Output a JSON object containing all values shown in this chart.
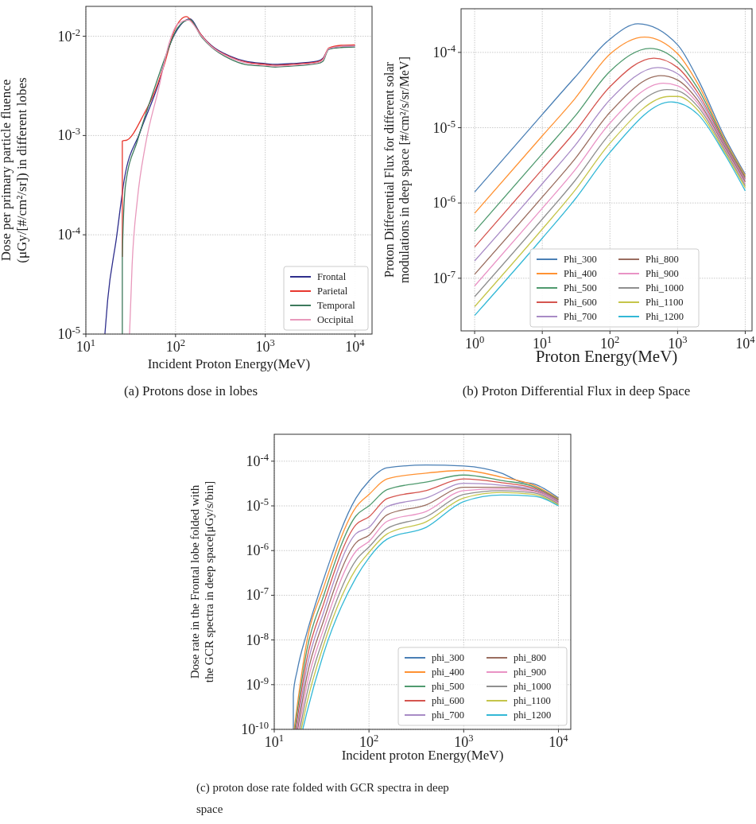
{
  "chart_data": [
    {
      "type": "line",
      "title": "(a)  Protons dose in lobes",
      "xlabel": "Incident Proton Energy(MeV)",
      "ylabel": "Dose per primary particle fluence\n(μGy/[#/cm²/sr]) in different lobes",
      "log": "xy",
      "grid": true,
      "legend": "bottom right",
      "line_style": "solid",
      "xlim": [
        10,
        15500
      ],
      "ylim": [
        1e-05,
        0.02
      ],
      "xticks": [
        {
          "value": 10,
          "label": "10$^{1}$"
        },
        {
          "value": 100,
          "label": "10$^{2}$"
        },
        {
          "value": 1000,
          "label": "10$^{3}$"
        },
        {
          "value": 10000,
          "label": "10$^{4}$"
        }
      ],
      "yticks": [
        {
          "value": 1e-05,
          "label": "10$^{-5}$"
        },
        {
          "value": 0.0001,
          "label": "10$^{-4}$"
        },
        {
          "value": 0.001,
          "label": "10$^{-3}$"
        },
        {
          "value": 0.01,
          "label": "10$^{-2}$"
        }
      ],
      "series": [
        {
          "name": "Frontal",
          "color": "#2e2e8c",
          "x": [
            16.3,
            17.5,
            21.9,
            26.8,
            40,
            65,
            85,
            113,
            145,
            192,
            250,
            405,
            600,
            1000,
            1290,
            1950,
            3800,
            4400,
            5100,
            7000,
            10000
          ],
          "values": [
            1e-05,
            2.2e-05,
            9.2e-05,
            0.00036,
            0.00107,
            0.0034,
            0.0079,
            0.0129,
            0.015,
            0.0104,
            0.0081,
            0.0063,
            0.0056,
            0.0053,
            0.0052,
            0.0053,
            0.0056,
            0.006,
            0.0074,
            0.0079,
            0.008
          ]
        },
        {
          "name": "Parietal",
          "color": "#e8382f",
          "x": [
            25.5,
            25.5,
            28.7,
            44.5,
            56,
            74,
            98,
            132,
            167,
            192,
            250,
            405,
            600,
            1000,
            1290,
            1950,
            3800,
            4400,
            5100,
            7000,
            10000
          ],
          "values": [
            6e-05,
            0.00088,
            0.0009,
            0.00165,
            0.0025,
            0.005,
            0.0117,
            0.0158,
            0.0125,
            0.0104,
            0.008,
            0.0062,
            0.0055,
            0.0052,
            0.0051,
            0.0052,
            0.0055,
            0.0059,
            0.0076,
            0.0081,
            0.0082
          ]
        },
        {
          "name": "Temporal",
          "color": "#3d7a5c",
          "x": [
            25.5,
            25.5,
            27.7,
            37.6,
            56,
            80,
            105,
            145,
            192,
            250,
            405,
            600,
            1000,
            1290,
            1950,
            3800,
            4400,
            5100,
            7000,
            10000
          ],
          "values": [
            1e-05,
            6e-05,
            0.00032,
            0.00089,
            0.0027,
            0.0068,
            0.0121,
            0.0147,
            0.01,
            0.0078,
            0.0059,
            0.0052,
            0.005,
            0.0049,
            0.005,
            0.0053,
            0.0056,
            0.0074,
            0.0077,
            0.0078
          ]
        },
        {
          "name": "Occipital",
          "color": "#e899bc",
          "x": [
            30.7,
            32.8,
            37.6,
            46,
            65,
            85,
            105,
            138,
            192,
            250,
            405,
            600,
            1000,
            1290,
            1950,
            3800,
            4400,
            5100,
            7000,
            10000
          ],
          "values": [
            1e-05,
            5e-05,
            0.00023,
            0.00079,
            0.003,
            0.0086,
            0.0132,
            0.0146,
            0.0102,
            0.0079,
            0.0061,
            0.0054,
            0.0051,
            0.005,
            0.0051,
            0.0054,
            0.0058,
            0.0075,
            0.0079,
            0.008
          ]
        }
      ]
    },
    {
      "type": "line",
      "title": "(b)  Proton Differential Flux in deep Space",
      "xlabel": "Proton Energy(MeV)",
      "ylabel": "Proton Differential Flux for different solar\nmodulations in deep space [#/cm²/s/sr/MeV]",
      "log": "xy",
      "grid": true,
      "legend": "bottom",
      "line_style": "solid",
      "xlim": [
        0.63,
        12600
      ],
      "ylim": [
        2e-08,
        0.00038
      ],
      "xticks": [
        {
          "value": 1,
          "label": "10$^{0}$"
        },
        {
          "value": 10,
          "label": "10$^{1}$"
        },
        {
          "value": 100,
          "label": "10$^{2}$"
        },
        {
          "value": 1000,
          "label": "10$^{3}$"
        },
        {
          "value": 10000,
          "label": "10$^{4}$"
        }
      ],
      "yticks": [
        {
          "value": 1e-07,
          "label": "10$^{-7}$"
        },
        {
          "value": 1e-06,
          "label": "10$^{-6}$"
        },
        {
          "value": 1e-05,
          "label": "10$^{-5}$"
        },
        {
          "value": 0.0001,
          "label": "10$^{-4}$"
        }
      ],
      "series": [
        {
          "name": "Phi_300",
          "color": "#4a7fb5",
          "x": [
            1,
            10,
            30,
            100,
            260,
            1000,
            2000,
            5000,
            10000
          ],
          "values": [
            1.4e-06,
            1.5e-05,
            4.6e-05,
            0.00015,
            0.00024,
            0.000126,
            4.4e-05,
            7.4e-06,
            2.4e-06
          ]
        },
        {
          "name": "Phi_400",
          "color": "#ff9233",
          "x": [
            1,
            10,
            30,
            100,
            325,
            1000,
            2000,
            5000,
            10000
          ],
          "values": [
            7.3e-07,
            7.8e-06,
            2.4e-05,
            9.5e-05,
            0.00016,
            9.6e-05,
            3.8e-05,
            6.9e-06,
            2.3e-06
          ]
        },
        {
          "name": "Phi_500",
          "color": "#4f9a6e",
          "x": [
            1,
            10,
            30,
            100,
            390,
            1000,
            2000,
            5000,
            10000
          ],
          "values": [
            4.2e-07,
            4.5e-06,
            1.4e-05,
            5.6e-05,
            0.000113,
            7.6e-05,
            3.3e-05,
            6.5e-06,
            2.2e-06
          ]
        },
        {
          "name": "Phi_600",
          "color": "#d5554f",
          "x": [
            1,
            10,
            30,
            100,
            445,
            1000,
            2000,
            5000,
            10000
          ],
          "values": [
            2.6e-07,
            2.8e-06,
            8.7e-06,
            3.5e-05,
            8.4e-05,
            6.3e-05,
            2.9e-05,
            6.1e-06,
            2.1e-06
          ]
        },
        {
          "name": "Phi_700",
          "color": "#a88bc6",
          "x": [
            1,
            10,
            30,
            100,
            510,
            1000,
            2000,
            5000,
            10000
          ],
          "values": [
            1.7e-07,
            1.8e-06,
            5.7e-06,
            2.35e-05,
            6.3e-05,
            5.2e-05,
            2.6e-05,
            5.8e-06,
            2e-06
          ]
        },
        {
          "name": "Phi_800",
          "color": "#9a6d5f",
          "x": [
            1,
            10,
            30,
            100,
            560,
            1000,
            2000,
            5000,
            10000
          ],
          "values": [
            1.13e-07,
            1.2e-06,
            3.8e-06,
            1.6e-05,
            4.9e-05,
            4.3e-05,
            2.3e-05,
            5.5e-06,
            1.9e-06
          ]
        },
        {
          "name": "Phi_900",
          "color": "#e993c5",
          "x": [
            1,
            10,
            30,
            100,
            615,
            1000,
            2000,
            5000,
            10000
          ],
          "values": [
            7.9e-08,
            8.5e-07,
            2.7e-06,
            1.15e-05,
            3.9e-05,
            3.6e-05,
            2.1e-05,
            5.2e-06,
            1.8e-06
          ]
        },
        {
          "name": "Phi_1000",
          "color": "#8f8f8f",
          "x": [
            1,
            10,
            30,
            100,
            695,
            1000,
            2000,
            5000,
            10000
          ],
          "values": [
            5.7e-08,
            6.1e-07,
            1.95e-06,
            8.3e-06,
            3.2e-05,
            3.1e-05,
            1.9e-05,
            5e-06,
            1.7e-06
          ]
        },
        {
          "name": "Phi_1100",
          "color": "#c5c54a",
          "x": [
            1,
            10,
            30,
            100,
            760,
            1000,
            2000,
            5000,
            10000
          ],
          "values": [
            4.2e-08,
            4.5e-07,
            1.45e-06,
            6.2e-06,
            2.6e-05,
            2.6e-05,
            1.7e-05,
            4.7e-06,
            1.6e-06
          ]
        },
        {
          "name": "Phi_1200",
          "color": "#33b8d6",
          "x": [
            1,
            10,
            30,
            100,
            800,
            2000,
            5000,
            10000
          ],
          "values": [
            3.2e-08,
            3.4e-07,
            1.1e-06,
            4.7e-06,
            2.2e-05,
            1.5e-05,
            4.4e-06,
            1.45e-06
          ]
        }
      ]
    },
    {
      "type": "line",
      "title": "(c)  proton dose rate folded with GCR spectra in deep space",
      "xlabel": "Incident proton Energy(MeV)",
      "ylabel": "Dose rate in the Frontal lobe folded with\nthe GCR spectra in deep space[μGy/s/bin]",
      "log": "xy",
      "grid": true,
      "legend": "bottom right",
      "line_style": "solid",
      "xlim": [
        10,
        13500
      ],
      "ylim": [
        1e-10,
        0.0004
      ],
      "xticks": [
        {
          "value": 10,
          "label": "10$^{1}$"
        },
        {
          "value": 100,
          "label": "10$^{2}$"
        },
        {
          "value": 1000,
          "label": "10$^{3}$"
        },
        {
          "value": 10000,
          "label": "10$^{4}$"
        }
      ],
      "yticks": [
        {
          "value": 1e-10,
          "label": "10$^{-10}$"
        },
        {
          "value": 1e-09,
          "label": "10$^{-9}$"
        },
        {
          "value": 1e-08,
          "label": "10$^{-8}$"
        },
        {
          "value": 1e-07,
          "label": "10$^{-7}$"
        },
        {
          "value": 1e-06,
          "label": "10$^{-6}$"
        },
        {
          "value": 1e-05,
          "label": "10$^{-5}$"
        },
        {
          "value": 0.0001,
          "label": "10$^{-4}$"
        }
      ],
      "series": [
        {
          "name": "phi_300",
          "color": "#4a7fb5",
          "x": [
            15.9,
            15.9,
            17.5,
            22,
            33,
            73,
            100,
            155,
            400,
            1000,
            2500,
            4100,
            5500,
            10000
          ],
          "values": [
            1e-10,
            6.2e-10,
            2.1e-09,
            1.4e-08,
            2.2e-07,
            1.5e-05,
            3.6e-05,
            7.1e-05,
            8.2e-05,
            7.8e-05,
            5.4e-05,
            3.4e-05,
            3.1e-05,
            1.5e-05
          ]
        },
        {
          "name": "phi_400",
          "color": "#ff9233",
          "x": [
            16.2,
            22,
            33,
            73,
            100,
            155,
            400,
            1000,
            2500,
            5500,
            10000
          ],
          "values": [
            1e-10,
            8.9e-09,
            1.44e-07,
            9.4e-06,
            1.8e-05,
            4e-05,
            5.4e-05,
            6.2e-05,
            4.4e-05,
            2.9e-05,
            1.44e-05
          ]
        },
        {
          "name": "phi_500",
          "color": "#4f9a6e",
          "x": [
            16.5,
            22,
            33,
            73,
            100,
            155,
            400,
            1000,
            2500,
            5500,
            10000
          ],
          "values": [
            1e-10,
            5.7e-09,
            9.4e-08,
            6e-06,
            1e-05,
            2.3e-05,
            3.4e-05,
            4.9e-05,
            3.7e-05,
            2.7e-05,
            1.38e-05
          ]
        },
        {
          "name": "phi_600",
          "color": "#d5554f",
          "x": [
            16.9,
            22,
            33,
            73,
            100,
            155,
            400,
            1000,
            2500,
            5500,
            10000
          ],
          "values": [
            1e-10,
            3.6e-09,
            6.2e-08,
            3.8e-06,
            5.7e-06,
            1.45e-05,
            2.2e-05,
            4e-05,
            3.3e-05,
            2.5e-05,
            1.32e-05
          ]
        },
        {
          "name": "phi_700",
          "color": "#a88bc6",
          "x": [
            17.3,
            22,
            33,
            73,
            100,
            155,
            400,
            1000,
            2500,
            5500,
            10000
          ],
          "values": [
            1e-10,
            2.3e-09,
            4e-08,
            2.4e-06,
            3.3e-06,
            9.6e-06,
            1.5e-05,
            3.2e-05,
            2.9e-05,
            2.35e-05,
            1.26e-05
          ]
        },
        {
          "name": "phi_800",
          "color": "#9a6d5f",
          "x": [
            17.7,
            22,
            33,
            73,
            100,
            155,
            400,
            1000,
            2500,
            5500,
            10000
          ],
          "values": [
            1e-10,
            1.45e-09,
            2.6e-08,
            1.5e-06,
            2.2e-06,
            6.3e-06,
            1.05e-05,
            2.6e-05,
            2.6e-05,
            2.2e-05,
            1.2e-05
          ]
        },
        {
          "name": "phi_900",
          "color": "#e993c5",
          "x": [
            18.2,
            22,
            33,
            73,
            100,
            155,
            400,
            1000,
            2500,
            5500,
            10000
          ],
          "values": [
            1e-10,
            9.3e-10,
            1.7e-08,
            9.7e-07,
            1.6e-06,
            4.5e-06,
            7.5e-06,
            2.2e-05,
            2.4e-05,
            2.1e-05,
            1.15e-05
          ]
        },
        {
          "name": "phi_1000",
          "color": "#8f8f8f",
          "x": [
            18.7,
            22,
            33,
            73,
            100,
            155,
            400,
            1000,
            2500,
            5500,
            10000
          ],
          "values": [
            1e-10,
            5.9e-10,
            1.1e-08,
            6.1e-07,
            1.2e-06,
            3.1e-06,
            5.7e-06,
            1.8e-05,
            2.2e-05,
            1.95e-05,
            1.1e-05
          ]
        },
        {
          "name": "phi_1100",
          "color": "#c5c54a",
          "x": [
            19.3,
            22,
            33,
            73,
            100,
            155,
            400,
            1000,
            2500,
            5500,
            10000
          ],
          "values": [
            1e-10,
            3.7e-10,
            7.4e-09,
            3.9e-07,
            9.1e-07,
            2.35e-06,
            4.4e-06,
            1.5e-05,
            2e-05,
            1.8e-05,
            1.05e-05
          ]
        },
        {
          "name": "phi_1200",
          "color": "#33b8d6",
          "x": [
            20,
            22,
            33,
            73,
            100,
            155,
            400,
            1000,
            2500,
            5500,
            10000
          ],
          "values": [
            1e-10,
            2.3e-10,
            4.8e-09,
            2.5e-07,
            6.9e-07,
            1.8e-06,
            3.3e-06,
            1.25e-05,
            1.75e-05,
            1.65e-05,
            1e-05
          ]
        }
      ]
    }
  ]
}
